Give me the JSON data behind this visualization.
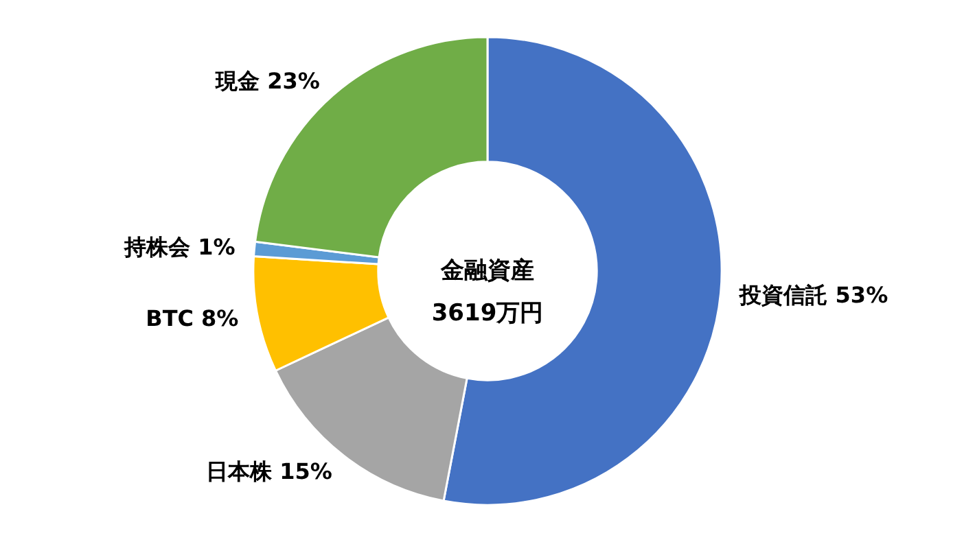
{
  "chart_data": {
    "type": "donut",
    "title": "金融資産",
    "subtitle": "3619万円",
    "categories": [
      "投資信託",
      "日本株",
      "BTC",
      "持株会",
      "現金"
    ],
    "values": [
      53,
      15,
      8,
      1,
      23
    ],
    "colors": [
      "#4472c4",
      "#a5a5a5",
      "#ffc000",
      "#5b9bd5",
      "#70ad47"
    ],
    "value_labels": [
      "53%",
      "15%",
      "8%",
      "1%",
      "23%"
    ],
    "legend": false
  }
}
